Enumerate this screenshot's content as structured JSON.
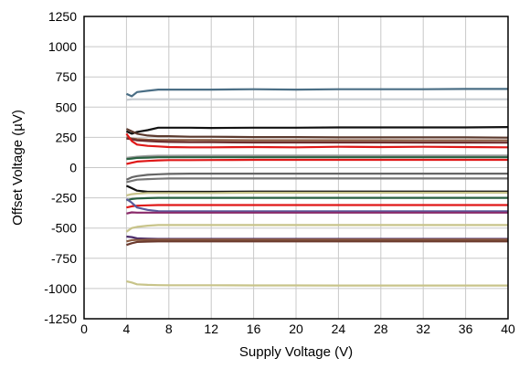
{
  "chart_data": {
    "type": "line",
    "title": "",
    "xlabel": "Supply Voltage (V)",
    "ylabel": "Offset Voltage (µV)",
    "xlim": [
      0,
      40
    ],
    "ylim": [
      -1250,
      1250
    ],
    "x_ticks": [
      "0",
      "4",
      "8",
      "12",
      "16",
      "20",
      "24",
      "28",
      "32",
      "36",
      "40"
    ],
    "y_ticks": [
      "1250",
      "1000",
      "750",
      "500",
      "250",
      "0",
      "-250",
      "-500",
      "-750",
      "-1000",
      "-1250"
    ],
    "grid": true,
    "legend": "none",
    "x": [
      4,
      4.5,
      5,
      6,
      7,
      8,
      10,
      12,
      16,
      20,
      24,
      28,
      32,
      36,
      40
    ],
    "series": [
      {
        "color": "#4a6e85",
        "values": [
          610,
          590,
          625,
          635,
          645,
          645,
          645,
          645,
          648,
          645,
          648,
          648,
          648,
          650,
          650
        ]
      },
      {
        "color": "#c8cdd2",
        "values": [
          560,
          565,
          565,
          565,
          565,
          565,
          565,
          565,
          565,
          565,
          565,
          565,
          565,
          565,
          565
        ]
      },
      {
        "color": "#111111",
        "values": [
          300,
          280,
          295,
          310,
          330,
          330,
          330,
          328,
          330,
          330,
          332,
          332,
          332,
          332,
          335
        ]
      },
      {
        "color": "#5c3a2e",
        "values": [
          320,
          300,
          280,
          265,
          260,
          260,
          255,
          255,
          252,
          252,
          250,
          250,
          250,
          250,
          248
        ]
      },
      {
        "color": "#8a5a40",
        "values": [
          250,
          240,
          235,
          230,
          228,
          228,
          228,
          227,
          226,
          226,
          226,
          226,
          225,
          225,
          225
        ]
      },
      {
        "color": "#6b2d2d",
        "values": [
          240,
          235,
          225,
          220,
          215,
          212,
          210,
          210,
          208,
          208,
          208,
          208,
          207,
          207,
          206
        ]
      },
      {
        "color": "#e01818",
        "values": [
          280,
          220,
          190,
          180,
          175,
          170,
          168,
          168,
          170,
          168,
          172,
          170,
          172,
          170,
          168
        ]
      },
      {
        "color": "#999999",
        "values": [
          80,
          85,
          90,
          95,
          98,
          98,
          100,
          100,
          100,
          100,
          100,
          100,
          100,
          100,
          100
        ]
      },
      {
        "color": "#2a6040",
        "values": [
          70,
          75,
          80,
          82,
          85,
          85,
          85,
          85,
          85,
          85,
          85,
          85,
          85,
          85,
          85
        ]
      },
      {
        "color": "#e01818",
        "values": [
          30,
          40,
          50,
          55,
          60,
          62,
          62,
          63,
          64,
          64,
          64,
          64,
          64,
          64,
          64
        ]
      },
      {
        "color": "#666666",
        "values": [
          -100,
          -80,
          -70,
          -60,
          -55,
          -52,
          -50,
          -50,
          -50,
          -50,
          -50,
          -50,
          -50,
          -50,
          -50
        ]
      },
      {
        "color": "#777777",
        "values": [
          -120,
          -110,
          -100,
          -95,
          -92,
          -90,
          -90,
          -90,
          -90,
          -90,
          -90,
          -90,
          -90,
          -90,
          -90
        ]
      },
      {
        "color": "#111111",
        "values": [
          -150,
          -170,
          -190,
          -200,
          -200,
          -200,
          -200,
          -200,
          -198,
          -198,
          -198,
          -198,
          -198,
          -198,
          -198
        ]
      },
      {
        "color": "#c8c48a",
        "values": [
          -230,
          -220,
          -215,
          -210,
          -210,
          -210,
          -210,
          -210,
          -208,
          -208,
          -208,
          -208,
          -208,
          -208,
          -208
        ]
      },
      {
        "color": "#2a6040",
        "values": [
          -270,
          -260,
          -255,
          -252,
          -250,
          -250,
          -250,
          -250,
          -250,
          -250,
          -250,
          -250,
          -250,
          -250,
          -250
        ]
      },
      {
        "color": "#e01818",
        "values": [
          -330,
          -320,
          -315,
          -312,
          -310,
          -310,
          -310,
          -310,
          -310,
          -310,
          -310,
          -310,
          -310,
          -310,
          -310
        ]
      },
      {
        "color": "#5a5a9a",
        "values": [
          -260,
          -290,
          -330,
          -350,
          -360,
          -362,
          -362,
          -362,
          -362,
          -362,
          -362,
          -362,
          -362,
          -362,
          -362
        ]
      },
      {
        "color": "#8a2a6a",
        "values": [
          -380,
          -370,
          -372,
          -372,
          -372,
          -372,
          -372,
          -372,
          -372,
          -372,
          -372,
          -372,
          -372,
          -372,
          -372
        ]
      },
      {
        "color": "#c8c48a",
        "values": [
          -530,
          -500,
          -490,
          -480,
          -475,
          -475,
          -475,
          -475,
          -475,
          -475,
          -475,
          -475,
          -475,
          -475,
          -475
        ]
      },
      {
        "color": "#4a2a6a",
        "values": [
          -570,
          -575,
          -585,
          -588,
          -590,
          -590,
          -590,
          -590,
          -590,
          -590,
          -590,
          -590,
          -590,
          -590,
          -590
        ]
      },
      {
        "color": "#8a5a40",
        "values": [
          -610,
          -600,
          -598,
          -597,
          -596,
          -596,
          -596,
          -596,
          -596,
          -596,
          -596,
          -596,
          -596,
          -596,
          -596
        ]
      },
      {
        "color": "#6b3a2e",
        "values": [
          -640,
          -625,
          -615,
          -612,
          -610,
          -610,
          -610,
          -610,
          -610,
          -610,
          -610,
          -610,
          -610,
          -610,
          -610
        ]
      },
      {
        "color": "#c8c48a",
        "values": [
          -940,
          -950,
          -965,
          -970,
          -972,
          -973,
          -973,
          -973,
          -974,
          -974,
          -975,
          -975,
          -975,
          -975,
          -975
        ]
      }
    ]
  }
}
